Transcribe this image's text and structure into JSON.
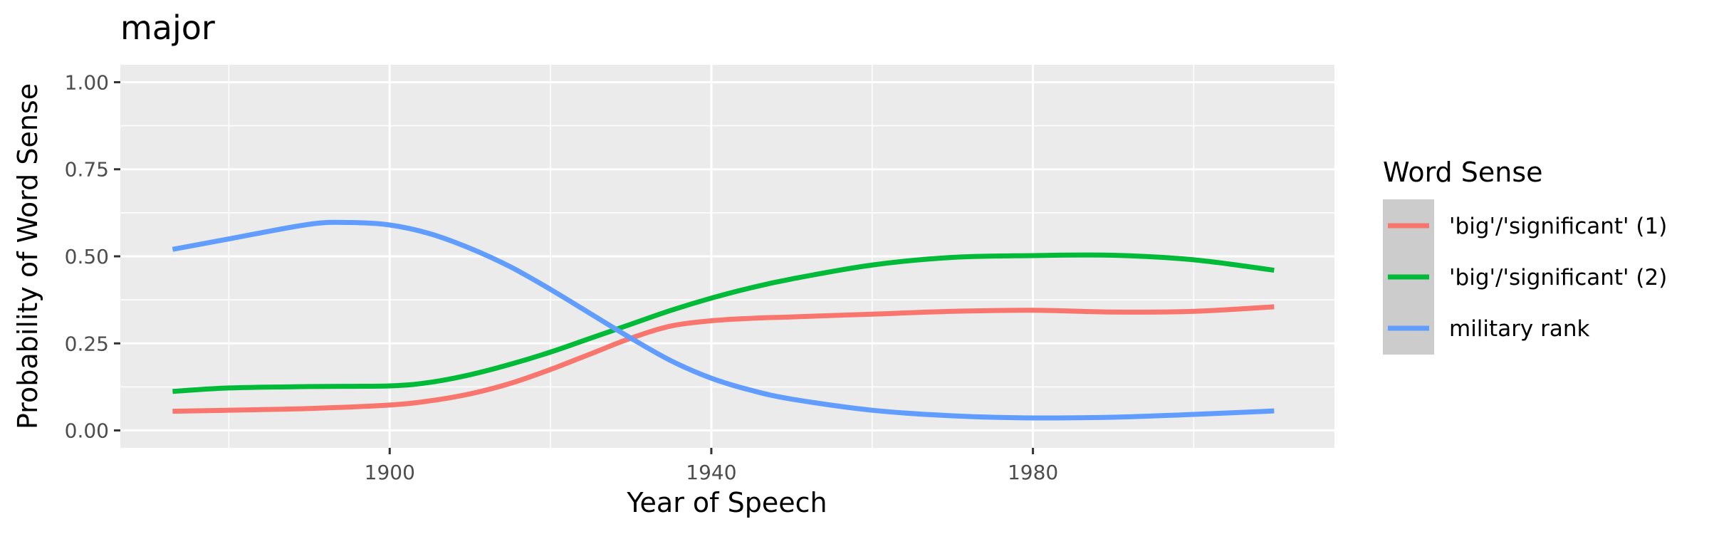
{
  "chart_data": {
    "type": "line",
    "title": "major",
    "xlabel": "Year of Speech",
    "ylabel": "Probability of Word Sense",
    "xlim": [
      1866.5,
      2017.5
    ],
    "ylim": [
      -0.05,
      1.05
    ],
    "x_ticks": [
      1900,
      1940,
      1980
    ],
    "x_tick_labels": [
      "1900",
      "1940",
      "1980"
    ],
    "y_ticks": [
      0,
      0.25,
      0.5,
      0.75,
      1
    ],
    "y_tick_labels": [
      "0.00",
      "0.25",
      "0.50",
      "0.75",
      "1.00"
    ],
    "grid": true,
    "legend_title": "Word Sense",
    "legend_position": "right",
    "series": [
      {
        "name": "'big'/'significant' (1)",
        "color": "#F8766D",
        "x": [
          1873,
          1880,
          1890,
          1900,
          1905,
          1910,
          1915,
          1920,
          1925,
          1930,
          1935,
          1940,
          1945,
          1950,
          1960,
          1970,
          1980,
          1990,
          2000,
          2010
        ],
        "y": [
          0.055,
          0.058,
          0.063,
          0.073,
          0.085,
          0.105,
          0.135,
          0.175,
          0.22,
          0.265,
          0.3,
          0.315,
          0.322,
          0.326,
          0.334,
          0.342,
          0.345,
          0.34,
          0.342,
          0.355
        ]
      },
      {
        "name": "'big'/'significant' (2)",
        "color": "#00BA38",
        "x": [
          1873,
          1880,
          1890,
          1900,
          1905,
          1910,
          1915,
          1920,
          1925,
          1930,
          1935,
          1940,
          1945,
          1950,
          1960,
          1970,
          1980,
          1990,
          2000,
          2010
        ],
        "y": [
          0.112,
          0.122,
          0.126,
          0.128,
          0.138,
          0.16,
          0.19,
          0.225,
          0.265,
          0.305,
          0.345,
          0.38,
          0.41,
          0.435,
          0.475,
          0.497,
          0.502,
          0.503,
          0.49,
          0.46
        ]
      },
      {
        "name": "military rank",
        "color": "#619CFF",
        "x": [
          1873,
          1880,
          1890,
          1895,
          1900,
          1905,
          1910,
          1915,
          1920,
          1925,
          1930,
          1935,
          1940,
          1945,
          1950,
          1960,
          1970,
          1980,
          1990,
          2000,
          2010
        ],
        "y": [
          0.52,
          0.55,
          0.592,
          0.597,
          0.59,
          0.565,
          0.523,
          0.47,
          0.405,
          0.335,
          0.265,
          0.2,
          0.15,
          0.115,
          0.09,
          0.058,
          0.042,
          0.036,
          0.038,
          0.046,
          0.056
        ]
      }
    ]
  }
}
